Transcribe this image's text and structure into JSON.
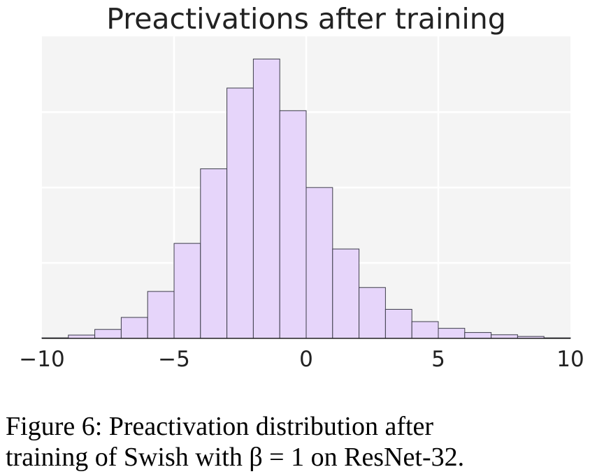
{
  "chart_data": {
    "type": "bar",
    "title": "Preactivations after training",
    "xlabel": "",
    "ylabel": "",
    "xlim": [
      -10,
      10
    ],
    "ylim": [
      0,
      1
    ],
    "grid": true,
    "x_ticks": [
      -10,
      -5,
      0,
      5,
      10
    ],
    "x_tick_labels": [
      "−10",
      "−5",
      "0",
      "5",
      "10"
    ],
    "y_ticks": [
      0,
      0.27,
      0.54,
      0.81
    ],
    "bin_edges": [
      -10,
      -9,
      -8,
      -7,
      -6,
      -5,
      -4,
      -3,
      -2,
      -1,
      0,
      1,
      2,
      3,
      4,
      5,
      6,
      7,
      8,
      9,
      10
    ],
    "values": [
      0.002,
      0.012,
      0.032,
      0.075,
      0.168,
      0.34,
      0.607,
      0.896,
      1.0,
      0.815,
      0.54,
      0.32,
      0.182,
      0.104,
      0.06,
      0.036,
      0.021,
      0.013,
      0.007,
      0.002
    ],
    "colors": {
      "bar_fill": "#e6d5fa",
      "bar_edge": "#3d3d4a",
      "plot_bg": "#f4f4f4",
      "grid": "#ffffff",
      "axis": "#222222"
    }
  },
  "caption": {
    "line1": "Figure 6: Preactivation distribution after",
    "line2": "training of Swish with β = 1 on ResNet-32."
  }
}
